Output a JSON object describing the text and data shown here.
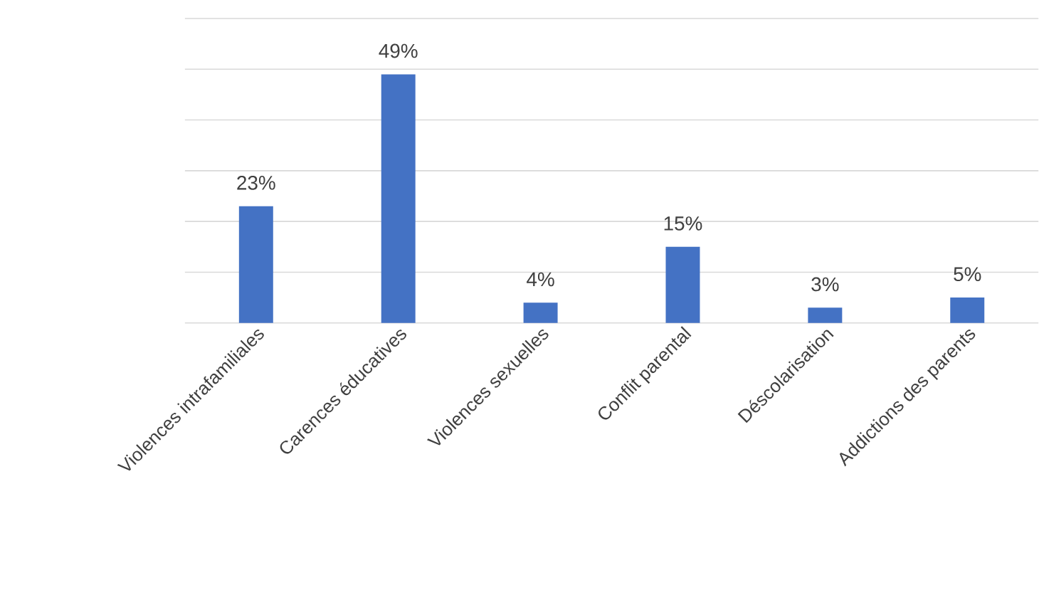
{
  "chart_data": {
    "type": "bar",
    "categories": [
      "Violences intrafamiliales",
      "Carences éducatives",
      "Violences sexuelles",
      "Conflit parental",
      "Déscolarisation",
      "Addictions des parents"
    ],
    "values": [
      23,
      49,
      4,
      15,
      3,
      5
    ],
    "value_labels": [
      "23%",
      "49%",
      "4%",
      "15%",
      "3%",
      "5%"
    ],
    "color": "#4472c4",
    "ylim": [
      0,
      60
    ],
    "yticks": [
      {
        "value": 0,
        "label": null
      },
      {
        "value": 10,
        "label": null
      },
      {
        "value": 20,
        "label": null
      },
      {
        "value": 30,
        "label": null
      },
      {
        "value": 40,
        "label": null
      },
      {
        "value": 50,
        "label": null
      },
      {
        "value": 60,
        "label": null
      }
    ],
    "grid": "y",
    "tick_labels": "x"
  }
}
